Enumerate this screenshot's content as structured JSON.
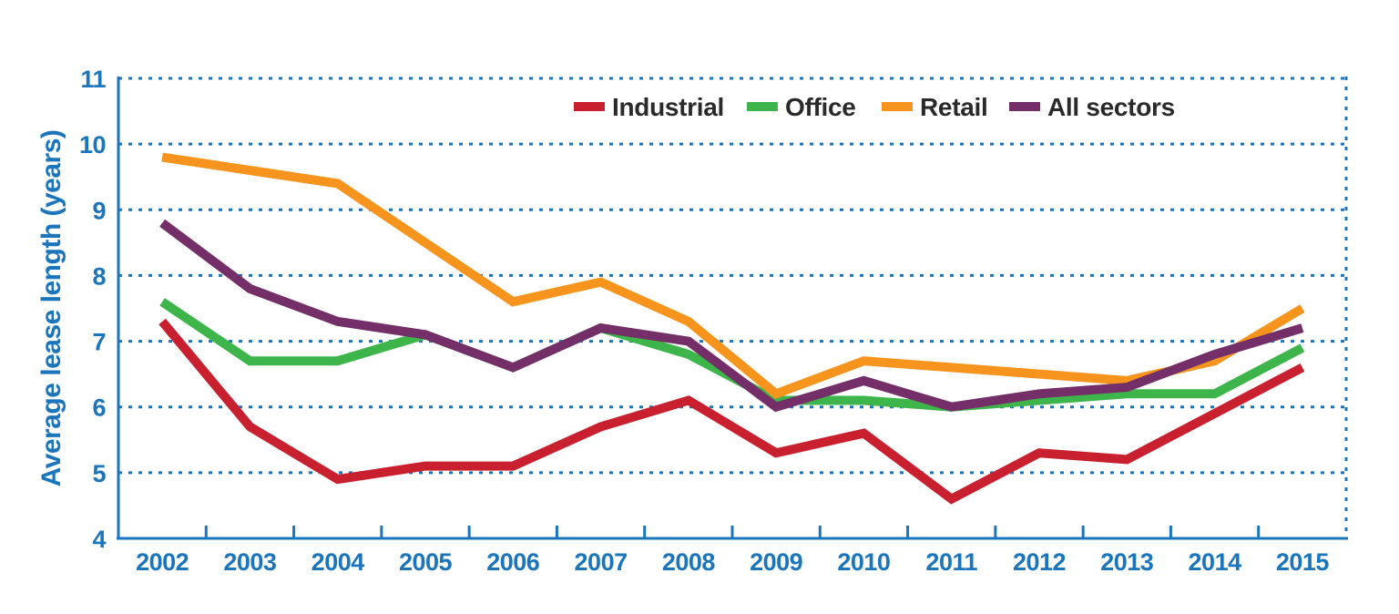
{
  "chart_data": {
    "type": "line",
    "title": "",
    "xlabel": "",
    "ylabel": "Average lease length (years)",
    "ylim": [
      4,
      11
    ],
    "yticks": [
      "4",
      "5",
      "6",
      "7",
      "8",
      "9",
      "10",
      "11"
    ],
    "categories": [
      "2002",
      "2003",
      "2004",
      "2005",
      "2006",
      "2007",
      "2008",
      "2009",
      "2010",
      "2011",
      "2012",
      "2013",
      "2014",
      "2015"
    ],
    "grid": "horizontal dotted",
    "legend_position": "top-right",
    "series": [
      {
        "name": "Industrial",
        "color": "#c8202f",
        "values": [
          7.3,
          5.7,
          4.9,
          5.1,
          5.1,
          5.7,
          6.1,
          5.3,
          5.6,
          4.6,
          5.3,
          5.2,
          5.9,
          6.6
        ]
      },
      {
        "name": "Office",
        "color": "#3db54a",
        "values": [
          7.6,
          6.7,
          6.7,
          7.1,
          6.6,
          7.2,
          6.8,
          6.1,
          6.1,
          6.0,
          6.1,
          6.2,
          6.2,
          6.9
        ]
      },
      {
        "name": "Retail",
        "color": "#f7941d",
        "values": [
          9.8,
          9.6,
          9.4,
          8.5,
          7.6,
          7.9,
          7.3,
          6.2,
          6.7,
          6.6,
          6.5,
          6.4,
          6.7,
          7.5
        ]
      },
      {
        "name": "All sectors",
        "color": "#742e68",
        "values": [
          8.8,
          7.8,
          7.3,
          7.1,
          6.6,
          7.2,
          7.0,
          6.0,
          6.4,
          6.0,
          6.2,
          6.3,
          6.8,
          7.2
        ]
      }
    ],
    "axis_color": "#1b75bc"
  }
}
